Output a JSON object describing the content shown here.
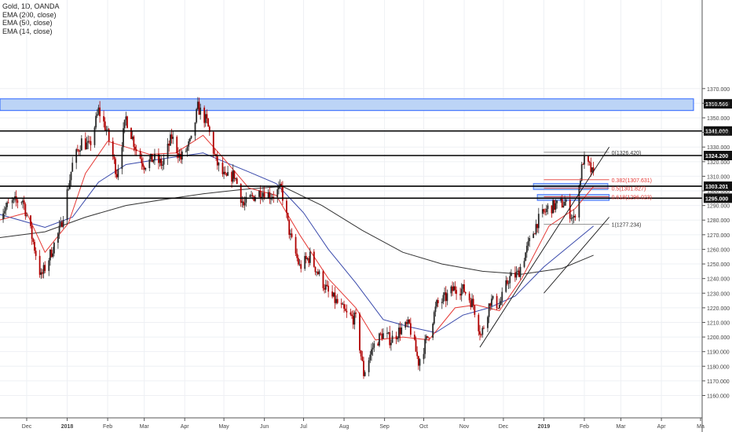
{
  "header": {
    "symbol_line": "Gold, 1D, OANDA",
    "studies": [
      "EMA (200, close)",
      "EMA (50, close)",
      "EMA (14, close)"
    ]
  },
  "colors": {
    "up_candle": "#2a2a2a",
    "down_candle": "#b00000",
    "ema14": "#e53935",
    "ema50": "#3949ab",
    "ema200": "#333333",
    "zone_fill": "#bcd4f6",
    "zone_border": "#2962ff",
    "fib_line": "#e53935",
    "level_line": "#000000"
  },
  "chart_data": {
    "type": "candlestick",
    "y_range": [
      1150,
      1375
    ],
    "y_ticks": [
      "1160.000",
      "1170.000",
      "1180.000",
      "1190.000",
      "1200.000",
      "1210.000",
      "1220.000",
      "1230.000",
      "1240.000",
      "1250.000",
      "1260.000",
      "1270.000",
      "1280.000",
      "1290.000",
      "1300.000",
      "1310.000",
      "1320.000",
      "1330.000",
      "1340.000",
      "1350.000",
      "1360.000",
      "1370.000"
    ],
    "x_ticks": [
      {
        "label": "Dec",
        "date": "2017-12-01"
      },
      {
        "label": "2018",
        "date": "2018-01-01"
      },
      {
        "label": "Feb",
        "date": "2018-02-01"
      },
      {
        "label": "Mar",
        "date": "2018-03-01"
      },
      {
        "label": "Apr",
        "date": "2018-04-01"
      },
      {
        "label": "May",
        "date": "2018-05-01"
      },
      {
        "label": "Jun",
        "date": "2018-06-01"
      },
      {
        "label": "Jul",
        "date": "2018-07-01"
      },
      {
        "label": "Aug",
        "date": "2018-08-01"
      },
      {
        "label": "Sep",
        "date": "2018-09-01"
      },
      {
        "label": "Oct",
        "date": "2018-10-01"
      },
      {
        "label": "Nov",
        "date": "2018-11-01"
      },
      {
        "label": "Dec",
        "date": "2018-12-01"
      },
      {
        "label": "2019",
        "date": "2019-01-01"
      },
      {
        "label": "Feb",
        "date": "2019-02-01"
      },
      {
        "label": "Mar",
        "date": "2019-03-01"
      },
      {
        "label": "Apr",
        "date": "2019-04-01"
      },
      {
        "label": "Ma",
        "date": "2019-05-01"
      }
    ],
    "price_path": [
      [
        "2017-11-10",
        1285
      ],
      [
        "2017-11-20",
        1292
      ],
      [
        "2017-11-28",
        1294
      ],
      [
        "2017-12-06",
        1265
      ],
      [
        "2017-12-12",
        1241
      ],
      [
        "2017-12-18",
        1254
      ],
      [
        "2017-12-27",
        1275
      ],
      [
        "2018-01-05",
        1318
      ],
      [
        "2018-01-12",
        1334
      ],
      [
        "2018-01-18",
        1330
      ],
      [
        "2018-01-25",
        1355
      ],
      [
        "2018-01-31",
        1342
      ],
      [
        "2018-02-08",
        1312
      ],
      [
        "2018-02-15",
        1350
      ],
      [
        "2018-02-23",
        1328
      ],
      [
        "2018-03-01",
        1318
      ],
      [
        "2018-03-08",
        1322
      ],
      [
        "2018-03-15",
        1318
      ],
      [
        "2018-03-22",
        1337
      ],
      [
        "2018-03-29",
        1322
      ],
      [
        "2018-04-06",
        1334
      ],
      [
        "2018-04-11",
        1357
      ],
      [
        "2018-04-18",
        1347
      ],
      [
        "2018-04-25",
        1320
      ],
      [
        "2018-05-02",
        1308
      ],
      [
        "2018-05-09",
        1311
      ],
      [
        "2018-05-16",
        1290
      ],
      [
        "2018-05-23",
        1296
      ],
      [
        "2018-05-30",
        1300
      ],
      [
        "2018-06-06",
        1297
      ],
      [
        "2018-06-14",
        1301
      ],
      [
        "2018-06-21",
        1268
      ],
      [
        "2018-06-28",
        1248
      ],
      [
        "2018-07-06",
        1255
      ],
      [
        "2018-07-13",
        1242
      ],
      [
        "2018-07-20",
        1230
      ],
      [
        "2018-07-27",
        1223
      ],
      [
        "2018-08-03",
        1215
      ],
      [
        "2018-08-10",
        1212
      ],
      [
        "2018-08-16",
        1175
      ],
      [
        "2018-08-23",
        1193
      ],
      [
        "2018-08-30",
        1202
      ],
      [
        "2018-09-06",
        1198
      ],
      [
        "2018-09-13",
        1205
      ],
      [
        "2018-09-20",
        1208
      ],
      [
        "2018-09-27",
        1183
      ],
      [
        "2018-10-04",
        1200
      ],
      [
        "2018-10-11",
        1222
      ],
      [
        "2018-10-18",
        1227
      ],
      [
        "2018-10-25",
        1234
      ],
      [
        "2018-11-01",
        1232
      ],
      [
        "2018-11-08",
        1222
      ],
      [
        "2018-11-14",
        1201
      ],
      [
        "2018-11-21",
        1225
      ],
      [
        "2018-11-28",
        1222
      ],
      [
        "2018-12-05",
        1240
      ],
      [
        "2018-12-12",
        1243
      ],
      [
        "2018-12-19",
        1260
      ],
      [
        "2018-12-27",
        1279
      ],
      [
        "2019-01-04",
        1288
      ],
      [
        "2019-01-10",
        1290
      ],
      [
        "2019-01-17",
        1292
      ],
      [
        "2019-01-24",
        1280
      ],
      [
        "2019-01-31",
        1321
      ],
      [
        "2019-02-05",
        1316
      ],
      [
        "2019-02-08",
        1310
      ]
    ],
    "ema14_path": [
      [
        "2017-11-10",
        1280
      ],
      [
        "2017-12-01",
        1285
      ],
      [
        "2017-12-15",
        1258
      ],
      [
        "2018-01-02",
        1278
      ],
      [
        "2018-01-15",
        1312
      ],
      [
        "2018-02-01",
        1334
      ],
      [
        "2018-02-15",
        1330
      ],
      [
        "2018-03-05",
        1325
      ],
      [
        "2018-03-25",
        1326
      ],
      [
        "2018-04-15",
        1338
      ],
      [
        "2018-05-01",
        1322
      ],
      [
        "2018-05-20",
        1302
      ],
      [
        "2018-06-10",
        1297
      ],
      [
        "2018-06-28",
        1270
      ],
      [
        "2018-07-20",
        1240
      ],
      [
        "2018-08-10",
        1220
      ],
      [
        "2018-08-25",
        1198
      ],
      [
        "2018-09-15",
        1200
      ],
      [
        "2018-10-05",
        1198
      ],
      [
        "2018-10-25",
        1220
      ],
      [
        "2018-11-10",
        1222
      ],
      [
        "2018-11-28",
        1218
      ],
      [
        "2018-12-15",
        1240
      ],
      [
        "2019-01-05",
        1276
      ],
      [
        "2019-01-25",
        1288
      ],
      [
        "2019-02-08",
        1303
      ]
    ],
    "ema50_path": [
      [
        "2017-11-10",
        1284
      ],
      [
        "2017-12-15",
        1275
      ],
      [
        "2018-01-05",
        1282
      ],
      [
        "2018-01-25",
        1306
      ],
      [
        "2018-02-15",
        1318
      ],
      [
        "2018-03-15",
        1322
      ],
      [
        "2018-04-15",
        1326
      ],
      [
        "2018-05-01",
        1320
      ],
      [
        "2018-05-20",
        1313
      ],
      [
        "2018-06-10",
        1305
      ],
      [
        "2018-07-01",
        1285
      ],
      [
        "2018-07-20",
        1260
      ],
      [
        "2018-08-10",
        1237
      ],
      [
        "2018-08-31",
        1212
      ],
      [
        "2018-09-20",
        1207
      ],
      [
        "2018-10-10",
        1203
      ],
      [
        "2018-10-31",
        1215
      ],
      [
        "2018-11-20",
        1220
      ],
      [
        "2018-12-10",
        1228
      ],
      [
        "2019-01-01",
        1248
      ],
      [
        "2019-01-20",
        1262
      ],
      [
        "2019-02-08",
        1276
      ]
    ],
    "ema200_path": [
      [
        "2017-11-10",
        1268
      ],
      [
        "2017-12-15",
        1272
      ],
      [
        "2018-01-15",
        1282
      ],
      [
        "2018-02-15",
        1290
      ],
      [
        "2018-03-15",
        1294
      ],
      [
        "2018-04-15",
        1298
      ],
      [
        "2018-05-15",
        1301
      ],
      [
        "2018-06-15",
        1303
      ],
      [
        "2018-07-15",
        1290
      ],
      [
        "2018-08-15",
        1273
      ],
      [
        "2018-09-15",
        1258
      ],
      [
        "2018-10-15",
        1250
      ],
      [
        "2018-11-15",
        1245
      ],
      [
        "2018-12-15",
        1243
      ],
      [
        "2019-01-15",
        1247
      ],
      [
        "2019-02-08",
        1256
      ]
    ],
    "horizontal_levels": [
      {
        "label": "1341.000",
        "value": 1341
      },
      {
        "label": "1324.200",
        "value": 1324.2
      },
      {
        "label": "1303.201",
        "value": 1303.201
      },
      {
        "label": "1295.000",
        "value": 1295
      }
    ],
    "resistance_zone": {
      "label": "1359.566",
      "from": 1355,
      "to": 1363
    },
    "fibonacci": [
      {
        "label": "0(1326.420)",
        "value": 1326.42
      },
      {
        "label": "0.382(1307.631)",
        "value": 1307.631
      },
      {
        "label": "0.5(1301.827)",
        "value": 1301.827
      },
      {
        "label": "0.618(1296.023)",
        "value": 1296.023
      },
      {
        "label": "1(1277.234)",
        "value": 1277.234
      }
    ],
    "trendlines": [
      {
        "from": [
          "2018-11-13",
          1193
        ],
        "to": [
          "2019-02-20",
          1330
        ]
      },
      {
        "from": [
          "2019-01-01",
          1230
        ],
        "to": [
          "2019-02-20",
          1282
        ]
      }
    ]
  }
}
